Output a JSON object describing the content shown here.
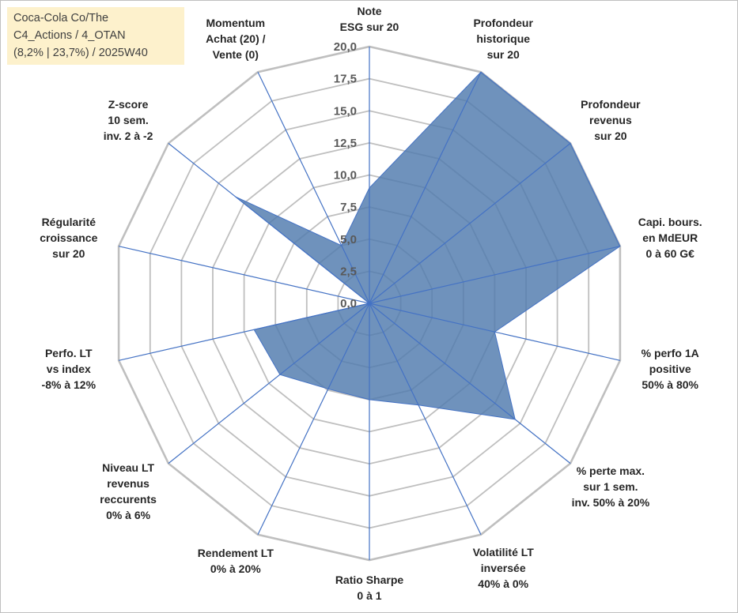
{
  "chart_data": {
    "type": "radar",
    "title_lines": [
      "Coca-Cola Co/The",
      "C4_Actions / 4_OTAN",
      "(8,2% | 23,7%) / 2025W40"
    ],
    "scale": {
      "min": 0,
      "max": 20,
      "step": 2.5
    },
    "tick_labels": [
      "0,0",
      "2,5",
      "5,0",
      "7,5",
      "10,0",
      "12,5",
      "15,0",
      "17,5",
      "20,0"
    ],
    "axes": [
      {
        "label_lines": [
          "Note",
          "ESG sur 20"
        ],
        "value": 9.0
      },
      {
        "label_lines": [
          "Profondeur",
          "historique",
          "sur 20"
        ],
        "value": 20.0
      },
      {
        "label_lines": [
          "Profondeur",
          "revenus",
          "sur 20"
        ],
        "value": 20.0
      },
      {
        "label_lines": [
          "Capi. bours.",
          "en MdEUR",
          "0 à 60 G€"
        ],
        "value": 20.0
      },
      {
        "label_lines": [
          "% perfo 1A",
          "positive",
          "50% à 80%"
        ],
        "value": 10.0
      },
      {
        "label_lines": [
          "% perte max.",
          "sur 1 sem.",
          "inv. 50% à 20%"
        ],
        "value": 14.5
      },
      {
        "label_lines": [
          "Volatilité LT",
          "inversée",
          "40% à 0%"
        ],
        "value": 8.8
      },
      {
        "label_lines": [
          "Ratio Sharpe",
          "0 à 1"
        ],
        "value": 7.5
      },
      {
        "label_lines": [
          "Rendement LT",
          "0% à 20%"
        ],
        "value": 7.4
      },
      {
        "label_lines": [
          "Niveau LT",
          "revenus",
          "reccurents",
          "0% à 6%"
        ],
        "value": 8.9
      },
      {
        "label_lines": [
          "Perfo. LT",
          "vs index",
          "-8% à 12%"
        ],
        "value": 9.2
      },
      {
        "label_lines": [
          "Régularité",
          "croissance",
          "sur 20"
        ],
        "value": 0.0
      },
      {
        "label_lines": [
          "Z-score",
          "10 sem.",
          "inv. 2 à -2"
        ],
        "value": 13.3
      },
      {
        "label_lines": [
          "Momentum",
          "Achat (20) /",
          "Vente (0)"
        ],
        "value": 5.0
      }
    ],
    "grid": true,
    "series": [
      {
        "name": "Coca-Cola Co/The",
        "fill": "#4f7aad",
        "stroke": "#4472c4"
      }
    ],
    "colors": {
      "grid": "#bfbfbf",
      "spoke": "#4472c4"
    }
  }
}
